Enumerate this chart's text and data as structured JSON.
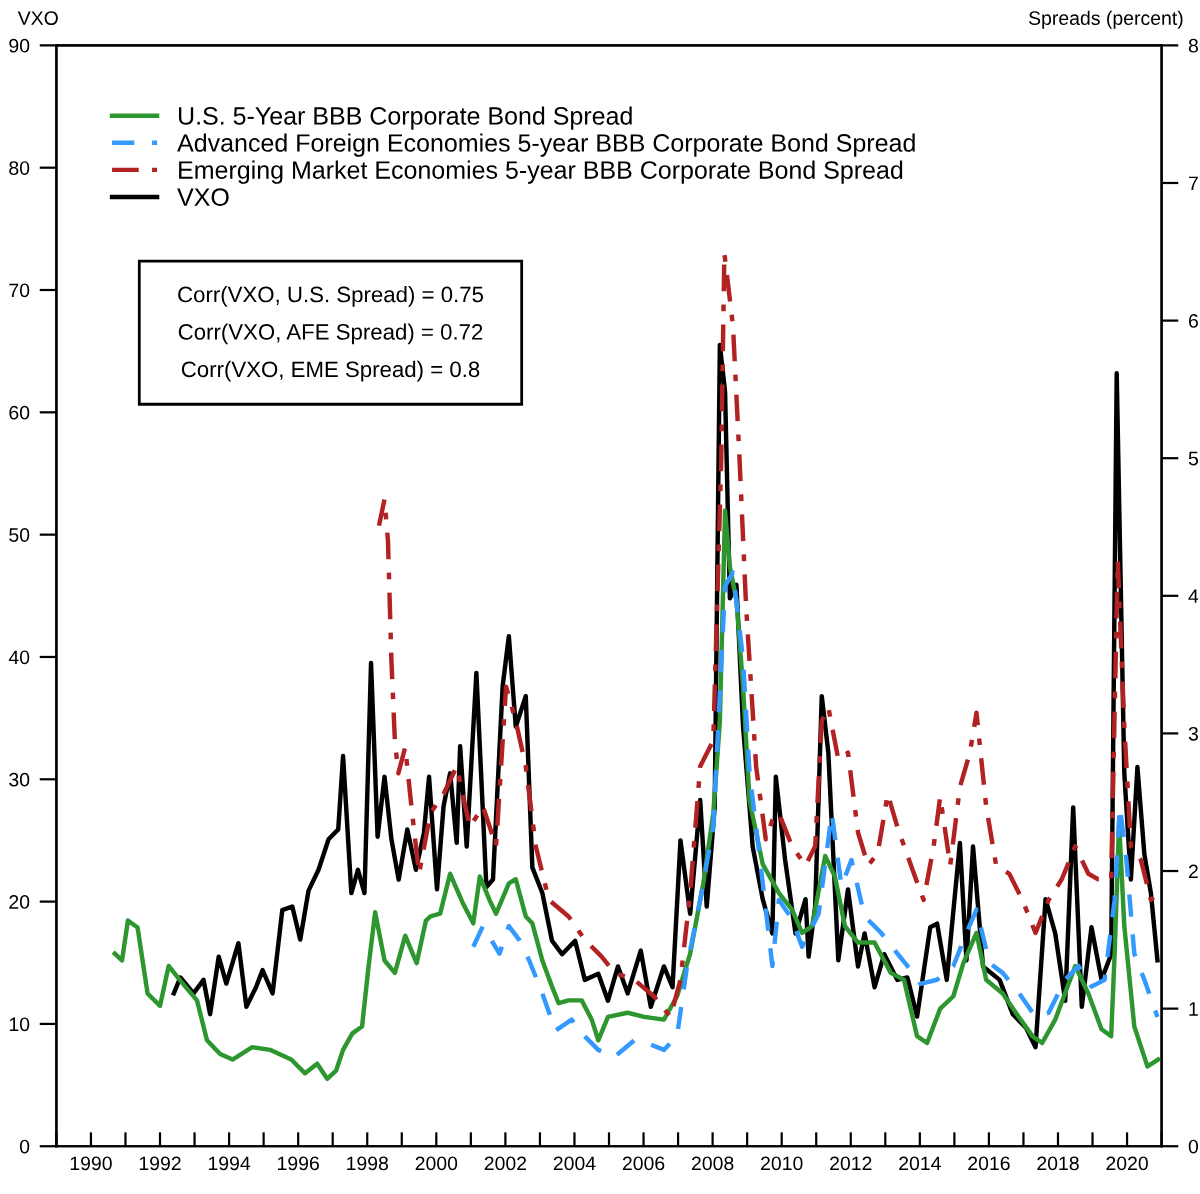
{
  "chart_data": {
    "type": "line",
    "ylabel": "VXO",
    "y2label": "Spreads (percent)",
    "annotations": [
      "Corr(VXO, U.S. Spread) = 0.75",
      "Corr(VXO, AFE Spread) = 0.72",
      "Corr(VXO, EME Spread) = 0.8"
    ],
    "xlim": [
      1989,
      2021
    ],
    "xticks": [
      {
        "value": 1989,
        "label": null
      },
      1990,
      {
        "value": 1991,
        "label": null
      },
      1992,
      {
        "value": 1993,
        "label": null
      },
      1994,
      {
        "value": 1995,
        "label": null
      },
      1996,
      {
        "value": 1997,
        "label": null
      },
      1998,
      {
        "value": 1999,
        "label": null
      },
      2000,
      {
        "value": 2001,
        "label": null
      },
      2002,
      {
        "value": 2003,
        "label": null
      },
      2004,
      {
        "value": 2005,
        "label": null
      },
      2006,
      {
        "value": 2007,
        "label": null
      },
      2008,
      {
        "value": 2009,
        "label": null
      },
      2010,
      {
        "value": 2011,
        "label": null
      },
      2012,
      {
        "value": 2013,
        "label": null
      },
      2014,
      {
        "value": 2015,
        "label": null
      },
      2016,
      {
        "value": 2017,
        "label": null
      },
      2018,
      {
        "value": 2019,
        "label": null
      },
      2020,
      {
        "value": 2021,
        "label": null
      }
    ],
    "ylim": [
      0,
      90
    ],
    "yticks": [
      0,
      10,
      20,
      30,
      40,
      50,
      60,
      70,
      80,
      90
    ],
    "y2lim": [
      0,
      8
    ],
    "y2ticks": [
      0,
      1,
      2,
      3,
      4,
      5,
      6,
      7,
      8
    ],
    "grid": false,
    "legend": "top left",
    "series": [
      {
        "name": "U.S. 5-Year BBB Corporate Bond Spread",
        "color": "#2e962e",
        "axis": "y2",
        "line_style": "solid",
        "x": [
          1990.69,
          1990.9,
          1991.07,
          1991.35,
          1991.64,
          1992.0,
          1992.25,
          1992.6,
          1993.07,
          1993.36,
          1993.74,
          1994.1,
          1994.67,
          1995.2,
          1995.8,
          1996.2,
          1996.55,
          1996.84,
          1997.1,
          1997.3,
          1997.57,
          1997.85,
          1998.04,
          1998.23,
          1998.5,
          1998.8,
          1999.1,
          1999.43,
          1999.7,
          1999.83,
          2000.11,
          2000.4,
          2000.78,
          2001.07,
          2001.26,
          2001.54,
          2001.73,
          2002.1,
          2002.3,
          2002.59,
          2002.78,
          2003.07,
          2003.35,
          2003.54,
          2003.83,
          2004.21,
          2004.5,
          2004.69,
          2004.97,
          2005.54,
          2006.02,
          2006.59,
          2006.97,
          2007.35,
          2007.73,
          2008.02,
          2008.21,
          2008.36,
          2008.5,
          2008.69,
          2008.88,
          2009.07,
          2009.45,
          2009.92,
          2010.3,
          2010.59,
          2010.88,
          2011.26,
          2011.54,
          2011.83,
          2012.21,
          2012.69,
          2013.16,
          2013.54,
          2013.92,
          2014.21,
          2014.59,
          2014.97,
          2015.26,
          2015.64,
          2015.92,
          2016.4,
          2016.78,
          2017.26,
          2017.54,
          2017.92,
          2018.5,
          2018.88,
          2019.26,
          2019.54,
          2019.64,
          2019.77,
          2019.92,
          2020.21,
          2020.59,
          2020.9
        ],
        "values": [
          1.4,
          1.35,
          1.64,
          1.59,
          1.11,
          1.02,
          1.31,
          1.2,
          1.06,
          0.77,
          0.67,
          0.63,
          0.72,
          0.7,
          0.63,
          0.53,
          0.6,
          0.49,
          0.55,
          0.7,
          0.82,
          0.87,
          1.31,
          1.7,
          1.35,
          1.26,
          1.53,
          1.33,
          1.64,
          1.67,
          1.69,
          1.98,
          1.76,
          1.62,
          1.96,
          1.79,
          1.69,
          1.91,
          1.94,
          1.67,
          1.62,
          1.35,
          1.16,
          1.04,
          1.06,
          1.06,
          0.92,
          0.77,
          0.94,
          0.97,
          0.94,
          0.92,
          1.09,
          1.4,
          1.91,
          2.42,
          3.09,
          4.62,
          4.21,
          3.97,
          3.34,
          2.51,
          2.05,
          1.84,
          1.72,
          1.55,
          1.6,
          2.11,
          1.96,
          1.6,
          1.48,
          1.48,
          1.26,
          1.21,
          0.8,
          0.75,
          1.0,
          1.09,
          1.33,
          1.55,
          1.21,
          1.11,
          0.97,
          0.8,
          0.75,
          0.92,
          1.31,
          1.11,
          0.85,
          0.8,
          1.4,
          2.35,
          1.6,
          0.87,
          0.58,
          0.63
        ]
      },
      {
        "name": "Advanced Foreign Economies 5-year BBB Corporate Bond Spread",
        "color": "#3399ff",
        "axis": "y2",
        "line_style": "dashed",
        "x": [
          2001.07,
          2001.35,
          2001.83,
          2002.1,
          2002.4,
          2002.69,
          2003.07,
          2003.45,
          2003.92,
          2004.21,
          2004.69,
          2005.16,
          2005.73,
          2006.1,
          2006.59,
          2006.97,
          2007.26,
          2007.64,
          2008.02,
          2008.36,
          2008.59,
          2008.88,
          2009.07,
          2009.35,
          2009.73,
          2009.92,
          2010.3,
          2010.59,
          2011.07,
          2011.45,
          2011.73,
          2012.02,
          2012.4,
          2012.88,
          2013.35,
          2013.64,
          2014.02,
          2014.5,
          2014.97,
          2015.35,
          2015.64,
          2016.02,
          2016.4,
          2016.88,
          2017.35,
          2017.73,
          2018.21,
          2018.59,
          2018.97,
          2019.35,
          2019.64,
          2019.79,
          2019.98,
          2020.21,
          2020.5,
          2020.88
        ],
        "values": [
          1.45,
          1.6,
          1.4,
          1.6,
          1.5,
          1.35,
          1.11,
          0.84,
          0.92,
          0.82,
          0.7,
          0.65,
          0.77,
          0.75,
          0.7,
          0.8,
          1.31,
          1.79,
          2.32,
          4.07,
          4.17,
          3.54,
          2.71,
          2.13,
          1.31,
          1.79,
          1.65,
          1.45,
          1.69,
          2.42,
          1.89,
          2.08,
          1.67,
          1.55,
          1.4,
          1.31,
          1.18,
          1.21,
          1.31,
          1.55,
          1.72,
          1.33,
          1.26,
          1.11,
          0.94,
          0.97,
          1.21,
          1.31,
          1.16,
          1.21,
          1.79,
          2.47,
          2.08,
          1.4,
          1.21,
          0.94
        ]
      },
      {
        "name": "Emerging Market Economies 5-year BBB Corporate Bond Spread",
        "color": "#b22222",
        "axis": "y2",
        "line_style": "dashdot",
        "x": [
          1998.34,
          1998.5,
          1998.6,
          1998.7,
          1998.8,
          1998.9,
          1999.1,
          1999.3,
          1999.5,
          1999.83,
          2000.21,
          2000.59,
          2000.97,
          2001.35,
          2001.73,
          2002.02,
          2002.3,
          2002.59,
          2002.88,
          2003.26,
          2003.83,
          2004.3,
          2004.78,
          2005.16,
          2005.73,
          2006.3,
          2006.78,
          2007.07,
          2007.35,
          2007.64,
          2008.02,
          2008.25,
          2008.34,
          2008.59,
          2008.78,
          2008.97,
          2009.26,
          2009.54,
          2009.73,
          2009.92,
          2010.3,
          2010.69,
          2010.97,
          2011.16,
          2011.35,
          2011.64,
          2011.92,
          2012.21,
          2012.5,
          2012.78,
          2013.07,
          2013.35,
          2013.83,
          2014.11,
          2014.4,
          2014.59,
          2014.88,
          2015.16,
          2015.45,
          2015.64,
          2015.92,
          2016.21,
          2016.59,
          2016.97,
          2017.35,
          2017.73,
          2018.11,
          2018.5,
          2018.88,
          2019.16,
          2019.54,
          2019.73,
          2019.92,
          2020.11,
          2020.4,
          2020.69,
          2020.9
        ],
        "values": [
          4.51,
          4.7,
          4.4,
          3.53,
          2.95,
          2.71,
          2.9,
          2.42,
          1.98,
          2.42,
          2.56,
          2.76,
          2.32,
          2.47,
          2.18,
          3.34,
          3.09,
          2.76,
          2.18,
          1.79,
          1.67,
          1.5,
          1.38,
          1.26,
          1.21,
          1.09,
          0.94,
          1.21,
          1.84,
          2.76,
          2.95,
          4.99,
          6.49,
          5.96,
          4.99,
          3.92,
          2.76,
          2.23,
          2.37,
          2.42,
          2.18,
          2.04,
          2.18,
          3.09,
          3.19,
          2.81,
          2.86,
          2.28,
          2.04,
          2.13,
          2.56,
          2.32,
          1.98,
          1.79,
          2.18,
          2.54,
          2.04,
          2.61,
          2.86,
          3.15,
          2.47,
          2.04,
          1.98,
          1.79,
          1.55,
          1.79,
          1.94,
          2.18,
          1.98,
          1.94,
          1.94,
          4.26,
          3.05,
          2.18,
          2.08,
          1.79,
          1.84
        ]
      },
      {
        "name": "VXO",
        "color": "#000000",
        "axis": "y",
        "line_style": "solid",
        "x": [
          1992.4,
          1992.59,
          1992.97,
          1993.26,
          1993.45,
          1993.7,
          1993.92,
          1994.27,
          1994.5,
          1994.78,
          1994.97,
          1995.26,
          1995.54,
          1995.83,
          1996.06,
          1996.3,
          1996.59,
          1996.88,
          1997.16,
          1997.3,
          1997.54,
          1997.73,
          1997.92,
          1998.11,
          1998.3,
          1998.5,
          1998.7,
          1998.91,
          1999.16,
          1999.41,
          1999.64,
          1999.79,
          2000.02,
          2000.21,
          2000.4,
          2000.59,
          2000.69,
          2000.88,
          2001.16,
          2001.45,
          2001.64,
          2001.92,
          2002.1,
          2002.3,
          2002.59,
          2002.78,
          2003.07,
          2003.35,
          2003.64,
          2004.02,
          2004.3,
          2004.69,
          2004.97,
          2005.26,
          2005.54,
          2005.92,
          2006.21,
          2006.59,
          2006.84,
          2007.07,
          2007.35,
          2007.64,
          2007.83,
          2008.06,
          2008.21,
          2008.36,
          2008.5,
          2008.69,
          2008.88,
          2009.16,
          2009.45,
          2009.73,
          2009.83,
          2010.1,
          2010.4,
          2010.69,
          2010.78,
          2010.97,
          2011.16,
          2011.35,
          2011.64,
          2011.92,
          2012.21,
          2012.4,
          2012.69,
          2012.97,
          2013.35,
          2013.64,
          2013.92,
          2014.3,
          2014.5,
          2014.78,
          2015.16,
          2015.35,
          2015.54,
          2015.83,
          2016.31,
          2016.69,
          2017.07,
          2017.35,
          2017.64,
          2017.92,
          2018.21,
          2018.44,
          2018.69,
          2018.97,
          2019.26,
          2019.54,
          2019.7,
          2019.92,
          2020.11,
          2020.3,
          2020.5,
          2020.69,
          2020.88
        ],
        "values": [
          12.5,
          13.8,
          12.5,
          13.6,
          10.8,
          15.5,
          13.3,
          16.6,
          11.4,
          13.0,
          14.4,
          12.5,
          19.3,
          19.6,
          16.9,
          20.9,
          22.6,
          25.1,
          25.9,
          31.9,
          20.7,
          22.6,
          20.7,
          39.5,
          25.3,
          30.2,
          25.1,
          21.8,
          25.9,
          22.6,
          25.6,
          30.2,
          21.0,
          27.8,
          30.5,
          24.8,
          32.7,
          24.5,
          38.7,
          21.2,
          21.8,
          37.6,
          41.7,
          34.3,
          36.8,
          22.8,
          20.7,
          16.8,
          15.7,
          16.8,
          13.6,
          14.1,
          11.9,
          14.7,
          12.5,
          16.0,
          11.4,
          14.7,
          13.0,
          25.0,
          19.0,
          28.3,
          19.6,
          27.7,
          65.5,
          61.7,
          44.8,
          45.9,
          34.4,
          24.5,
          20.2,
          17.4,
          30.2,
          23.4,
          17.4,
          20.2,
          15.5,
          19.6,
          36.8,
          32.2,
          15.2,
          21.0,
          14.7,
          17.4,
          13.0,
          15.7,
          13.6,
          13.8,
          10.6,
          17.9,
          18.2,
          13.6,
          24.8,
          15.2,
          24.5,
          14.7,
          13.6,
          10.8,
          9.7,
          8.1,
          20.2,
          17.4,
          11.9,
          27.7,
          11.4,
          17.9,
          13.6,
          15.7,
          63.2,
          30.5,
          21.8,
          31.0,
          23.9,
          20.7,
          15.2
        ]
      }
    ]
  }
}
